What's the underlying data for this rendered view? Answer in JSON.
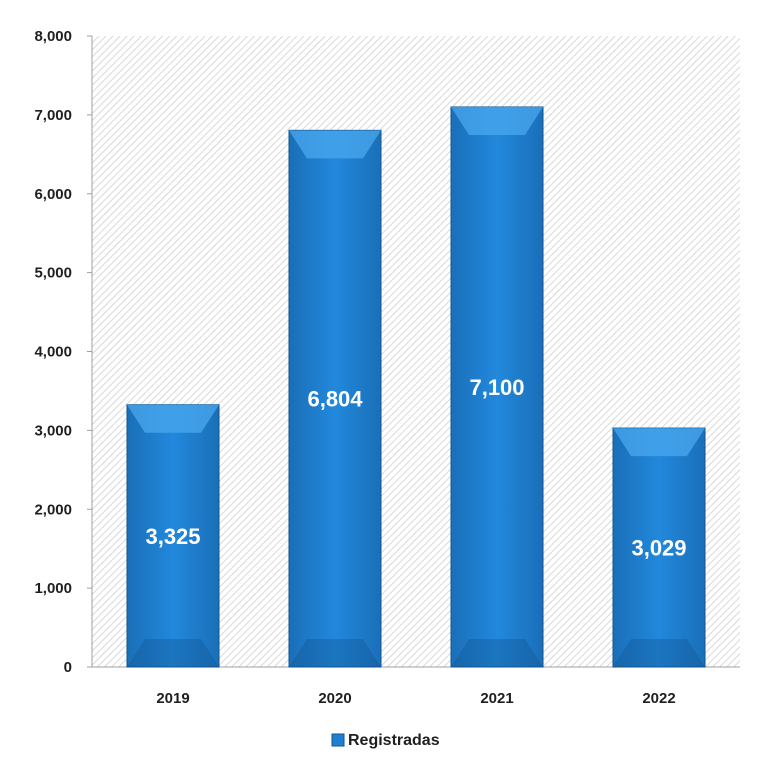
{
  "chart_data": {
    "type": "bar",
    "categories": [
      "2019",
      "2020",
      "2021",
      "2022"
    ],
    "series": [
      {
        "name": "Registradas",
        "values": [
          3325,
          6804,
          7100,
          3029
        ],
        "color": "#1f7fd0"
      }
    ],
    "data_labels": [
      "3,325",
      "6,804",
      "7,100",
      "3,029"
    ],
    "ylim": [
      0,
      8000
    ],
    "yticks": [
      0,
      1000,
      2000,
      3000,
      4000,
      5000,
      6000,
      7000,
      8000
    ],
    "ytick_labels": [
      "0",
      "1,000",
      "2,000",
      "3,000",
      "4,000",
      "5,000",
      "6,000",
      "7,000",
      "8,000"
    ],
    "title": "",
    "xlabel": "",
    "ylabel": "",
    "legend": {
      "position": "bottom",
      "entries": [
        "Registradas"
      ]
    },
    "grid": false,
    "plot_background": "hatched light gray"
  },
  "colors": {
    "bar": "#1f7fd0",
    "bar_dark": "#12548f",
    "bar_light": "#4aa8ee",
    "axis": "#a0a0a0",
    "text": "#1f1f1f",
    "data_label": "#ffffff"
  }
}
